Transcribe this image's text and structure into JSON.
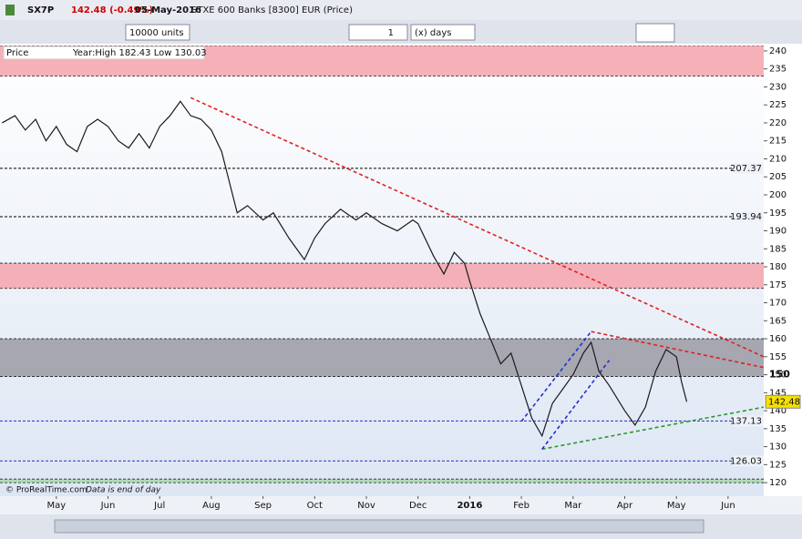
{
  "header": {
    "symbol": "SX7P",
    "change": "142.48 (-0.49%)",
    "date": "05-May-2016",
    "name": "STXE 600 Banks [8300] EUR (Price)"
  },
  "toolbar": {
    "units": "10000 units",
    "count": "1",
    "period": "(x) days"
  },
  "panel": {
    "label": "Price",
    "info": "Year:High 182.43 Low 130.03"
  },
  "footer": {
    "copyright": "© ProRealTime.com",
    "note": "Data is end of day"
  },
  "chart_data": {
    "type": "line",
    "xlim": [
      -1.09,
      13.69
    ],
    "ylim": [
      117.5,
      241.5
    ],
    "xticks": [
      {
        "value": 0,
        "label": "May"
      },
      {
        "value": 1,
        "label": "Jun"
      },
      {
        "value": 2,
        "label": "Jul"
      },
      {
        "value": 3,
        "label": "Aug"
      },
      {
        "value": 4,
        "label": "Sep"
      },
      {
        "value": 5,
        "label": "Oct"
      },
      {
        "value": 6,
        "label": "Nov"
      },
      {
        "value": 7,
        "label": "Dec"
      },
      {
        "value": 8,
        "label": "2016"
      },
      {
        "value": 9,
        "label": "Feb"
      },
      {
        "value": 10,
        "label": "Mar"
      },
      {
        "value": 11,
        "label": "Apr"
      },
      {
        "value": 12,
        "label": "May"
      },
      {
        "value": 13,
        "label": "Jun"
      }
    ],
    "yticks": [
      120,
      125,
      130,
      135,
      140,
      145,
      150,
      155,
      160,
      165,
      170,
      175,
      180,
      185,
      190,
      195,
      200,
      205,
      210,
      215,
      220,
      225,
      230,
      235,
      240
    ],
    "x": [
      -1.05,
      -0.8,
      -0.6,
      -0.4,
      -0.2,
      0,
      0.2,
      0.4,
      0.6,
      0.8,
      1.0,
      1.2,
      1.4,
      1.6,
      1.8,
      2.0,
      2.2,
      2.4,
      2.6,
      2.8,
      3.0,
      3.2,
      3.5,
      3.7,
      4.0,
      4.2,
      4.5,
      4.8,
      5.0,
      5.2,
      5.5,
      5.8,
      6.0,
      6.3,
      6.6,
      6.9,
      7.0,
      7.3,
      7.5,
      7.7,
      7.9,
      8.0,
      8.2,
      8.4,
      8.6,
      8.8,
      9.0,
      9.2,
      9.4,
      9.6,
      9.8,
      10.0,
      10.2,
      10.35,
      10.5,
      10.7,
      11.0,
      11.2,
      11.4,
      11.6,
      11.8,
      12.0,
      12.1,
      12.2
    ],
    "series": [
      {
        "color": "#1a1a1a",
        "values": [
          220,
          222,
          218,
          221,
          215,
          219,
          214,
          212,
          219,
          221,
          219,
          215,
          213,
          217,
          213,
          219,
          222,
          226,
          222,
          221,
          218,
          212,
          195,
          197,
          193,
          195,
          188,
          182,
          188,
          192,
          196,
          193,
          195,
          192,
          190,
          193,
          192,
          183,
          178,
          184,
          181,
          176,
          167,
          160,
          153,
          156,
          147,
          138,
          133,
          142,
          146,
          150,
          156,
          159,
          151,
          147,
          140,
          136,
          141,
          151,
          157,
          155,
          148,
          142.48
        ]
      }
    ],
    "zones": [
      {
        "from": 233,
        "to": 241.5,
        "color": "#f5a3ab"
      },
      {
        "from": 174,
        "to": 181,
        "color": "#f5a3ab"
      },
      {
        "from": 149.5,
        "to": 160,
        "color": "#9a9aa3"
      },
      {
        "from": 120,
        "to": 121,
        "color": "#a8d8a8"
      }
    ],
    "hlines": [
      {
        "value": 207.37,
        "color": "#000000"
      },
      {
        "value": 193.94,
        "color": "#000000"
      },
      {
        "value": 137.13,
        "color": "#1f2fd0"
      },
      {
        "value": 126.03,
        "color": "#1f2fd0"
      }
    ],
    "price_line": 150,
    "trendlines": [
      {
        "color": "#e02020",
        "x": [
          2.6,
          13.69
        ],
        "y": [
          227,
          155
        ]
      },
      {
        "color": "#e02020",
        "x": [
          10.35,
          13.69
        ],
        "y": [
          162,
          152
        ]
      },
      {
        "color": "#2a9a2a",
        "x": [
          9.4,
          13.69
        ],
        "y": [
          129.3,
          141
        ]
      },
      {
        "color": "#1f2fd0",
        "x": [
          9.0,
          10.35
        ],
        "y": [
          137,
          162
        ]
      },
      {
        "color": "#1f2fd0",
        "x": [
          9.4,
          10.7
        ],
        "y": [
          129.3,
          154
        ]
      }
    ]
  }
}
